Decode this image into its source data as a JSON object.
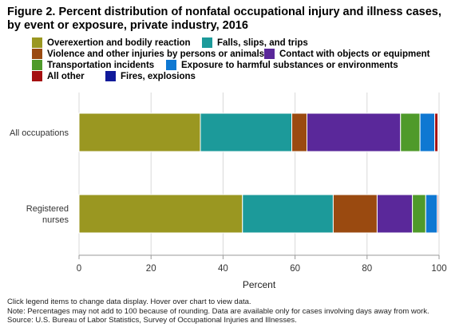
{
  "title_line1": "Figure 2. Percent distribution of nonfatal occupational injury and illness cases,",
  "title_line2": "by event or exposure, private industry, 2016",
  "notes": {
    "instructions": "Click legend items to change data display. Hover over chart to view data.",
    "note": "Note: Percentages may not add to 100 because of rounding. Data are available only for cases involving days away from work.",
    "source": "Source: U.S. Bureau of Labor Statistics, Survey of Occupational Injuries and Illnesses."
  },
  "chart_data": {
    "type": "bar",
    "orientation": "horizontal",
    "stacked": true,
    "title": "Figure 2. Percent distribution of nonfatal occupational injury and illness cases, by event or exposure, private industry, 2016",
    "xlabel": "Percent",
    "ylabel": "",
    "xlim": [
      0,
      100
    ],
    "xticks": [
      0,
      20,
      40,
      60,
      80,
      100
    ],
    "grid": "vertical",
    "legend_position": "top",
    "categories": [
      "All occupations",
      "Registered nurses"
    ],
    "series": [
      {
        "name": "Overexertion and bodily reaction",
        "color": "#9a9721",
        "values": [
          33.7,
          45.4
        ]
      },
      {
        "name": "Falls, slips, and trips",
        "color": "#1c9a9a",
        "values": [
          25.4,
          25.2
        ]
      },
      {
        "name": "Violence and other injuries by persons or animals",
        "color": "#9a4a10",
        "values": [
          4.2,
          12.2
        ]
      },
      {
        "name": "Contact with objects or equipment",
        "color": "#5a289a",
        "values": [
          26.0,
          9.8
        ]
      },
      {
        "name": "Transportation incidents",
        "color": "#4f9a2a",
        "values": [
          5.4,
          3.7
        ]
      },
      {
        "name": "Exposure to harmful substances or environments",
        "color": "#0f78d2",
        "values": [
          4.1,
          3.2
        ]
      },
      {
        "name": "All other",
        "color": "#a51010",
        "values": [
          0.9,
          0.3
        ]
      },
      {
        "name": "Fires, explosions",
        "color": "#101a9a",
        "values": [
          0.1,
          0.0
        ]
      }
    ]
  }
}
